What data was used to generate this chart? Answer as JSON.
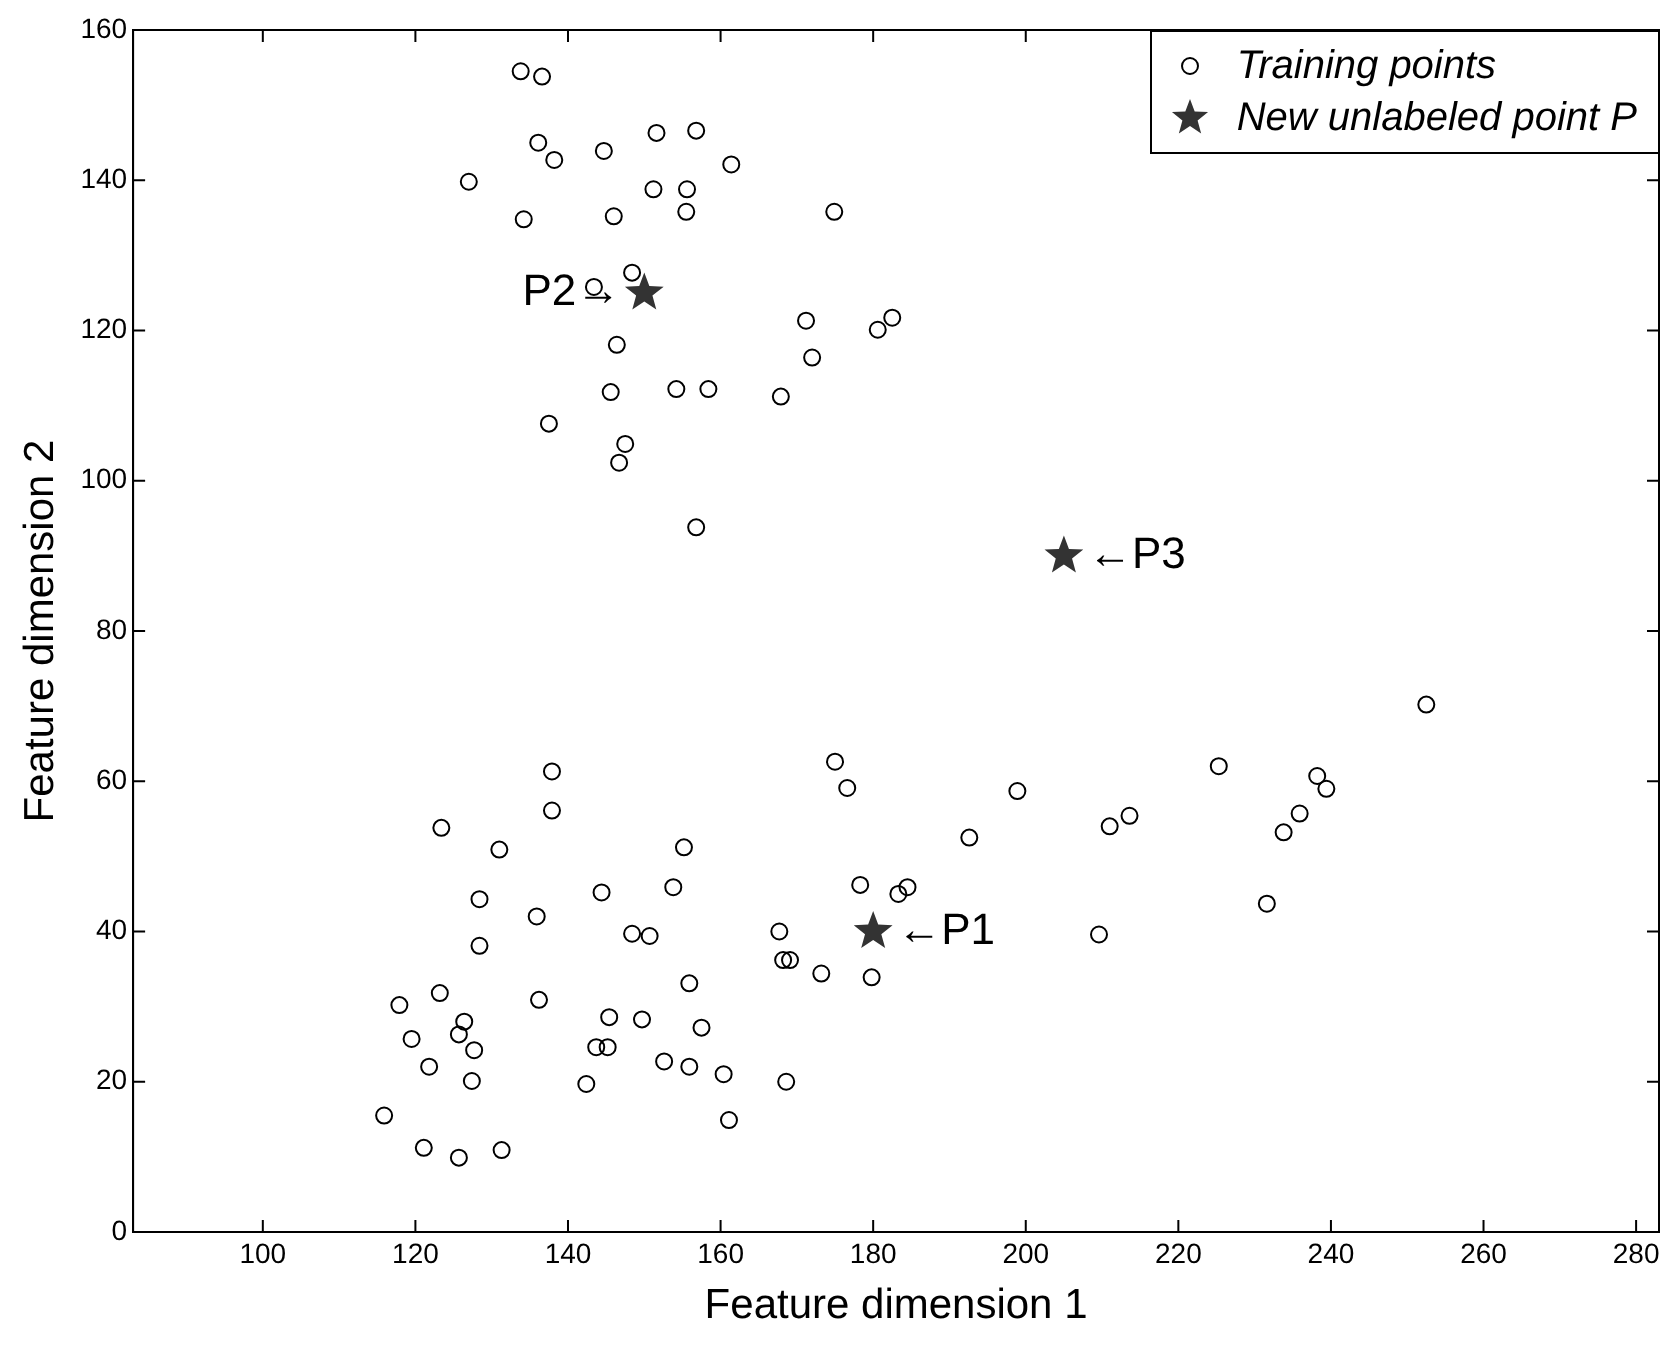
{
  "chart_data": {
    "type": "scatter",
    "xlabel": "Feature dimension 1",
    "ylabel": "Feature dimension 2",
    "xlim": [
      83,
      283
    ],
    "xticks": [
      100,
      120,
      140,
      160,
      180,
      200,
      220,
      240,
      260,
      280
    ],
    "ylim": [
      0,
      160
    ],
    "yticks": [
      0,
      20,
      40,
      60,
      80,
      100,
      120,
      140,
      160
    ],
    "grid": false,
    "legend": "top right",
    "series": [
      {
        "name": "Training points",
        "color": "#000000",
        "marker": "circle",
        "x": [
          133.8,
          136.6,
          136.1,
          138.2,
          144.7,
          151.6,
          156.8,
          161.4,
          127.0,
          151.2,
          155.6,
          155.5,
          134.2,
          146.0,
          174.9,
          148.4,
          143.4,
          171.2,
          172.0,
          180.6,
          182.5,
          146.4,
          145.6,
          154.2,
          158.4,
          167.9,
          137.5,
          147.5,
          146.7,
          156.8,
          137.9,
          137.9,
          123.4,
          131.0,
          128.4,
          135.9,
          128.4,
          144.4,
          148.4,
          150.7,
          155.2,
          153.8,
          175.0,
          176.6,
          178.3,
          183.3,
          184.5,
          167.7,
          168.2,
          169.1,
          173.2,
          179.8,
          117.9,
          123.2,
          119.5,
          126.4,
          125.7,
          127.7,
          121.8,
          127.4,
          115.9,
          121.1,
          125.7,
          131.3,
          136.2,
          145.4,
          143.7,
          145.2,
          149.7,
          142.4,
          155.9,
          157.5,
          152.6,
          155.9,
          160.4,
          161.1,
          168.6,
          252.5,
          225.3,
          198.9,
          192.6,
          211.0,
          213.6,
          238.2,
          239.4,
          235.9,
          233.8,
          231.6,
          209.6
        ],
        "values": [
          154.5,
          153.8,
          145.0,
          142.7,
          143.9,
          146.3,
          146.6,
          142.1,
          139.8,
          138.8,
          138.8,
          135.8,
          134.8,
          135.2,
          135.8,
          127.7,
          125.8,
          121.3,
          116.4,
          120.1,
          121.7,
          118.1,
          111.8,
          112.2,
          112.2,
          111.2,
          107.6,
          104.9,
          102.4,
          93.8,
          61.3,
          56.1,
          53.8,
          50.9,
          44.3,
          42.0,
          38.1,
          45.2,
          39.7,
          39.4,
          51.2,
          45.9,
          62.6,
          59.1,
          46.2,
          45.0,
          45.9,
          40.0,
          36.2,
          36.2,
          34.4,
          33.9,
          30.2,
          31.8,
          25.7,
          28.0,
          26.3,
          24.2,
          22.0,
          20.1,
          15.5,
          11.2,
          9.9,
          10.9,
          30.9,
          28.6,
          24.6,
          24.6,
          28.3,
          19.7,
          33.1,
          27.2,
          22.7,
          22.0,
          21.0,
          14.9,
          20.0,
          70.2,
          62.0,
          58.7,
          52.5,
          54.0,
          55.4,
          60.7,
          59.0,
          55.7,
          53.2,
          43.7,
          39.6
        ]
      },
      {
        "name": "New unlabeled point P",
        "color": "#333333",
        "marker": "star",
        "x": [
          180,
          150,
          205
        ],
        "values": [
          40,
          125,
          90
        ]
      }
    ],
    "annotations": [
      {
        "text": "←P1",
        "x": 180,
        "y": 40
      },
      {
        "text": "P2→",
        "x": 150,
        "y": 125
      },
      {
        "text": "←P3",
        "x": 205,
        "y": 90
      }
    ]
  }
}
